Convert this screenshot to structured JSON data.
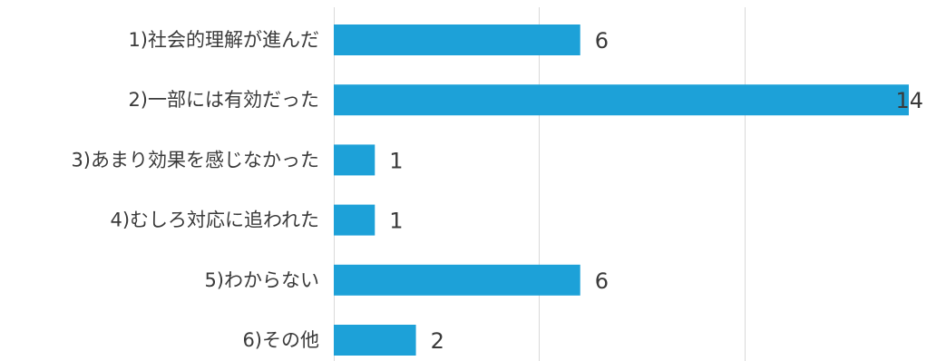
{
  "chart_data": {
    "type": "bar",
    "orientation": "horizontal",
    "categories": [
      "1)社会的理解が進んだ",
      "2)一部には有効だった",
      "3)あまり効果を感じなかった",
      "4)むしろ対応に追われた",
      "5)わからない",
      "6)その他"
    ],
    "values": [
      6,
      14,
      1,
      1,
      6,
      2
    ],
    "xlim": [
      0,
      14
    ],
    "grid": true,
    "bar_color": "#1da1d8",
    "data_labels": true
  }
}
